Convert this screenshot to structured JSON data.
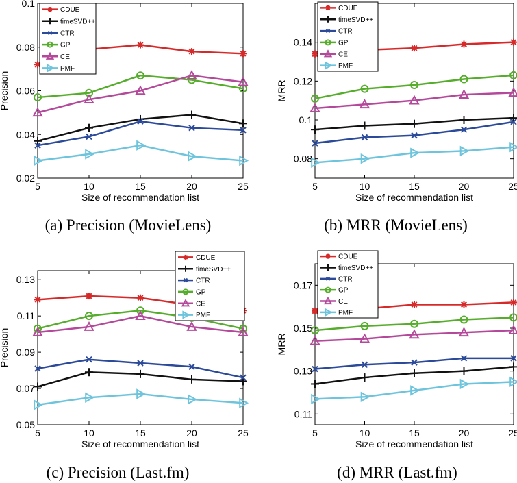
{
  "styles": {
    "CDUE": {
      "color": "#d62a2a",
      "marker": "star"
    },
    "timeSVD++": {
      "color": "#111111",
      "marker": "plus"
    },
    "CTR": {
      "color": "#2b4a9a",
      "marker": "x"
    },
    "GP": {
      "color": "#56ad2c",
      "marker": "circle"
    },
    "CE": {
      "color": "#b4499b",
      "marker": "triangle"
    },
    "PMF": {
      "color": "#6ec4dc",
      "marker": "tri-right"
    }
  },
  "chart_data": [
    {
      "type": "line",
      "caption": "(a) Precision (MovieLens)",
      "xlabel": "Size of recommendation list",
      "ylabel": "Precision",
      "x": [
        5,
        10,
        15,
        20,
        25
      ],
      "xticks": [
        "5",
        "10",
        "15",
        "20",
        "25"
      ],
      "yticks": [
        "0.02",
        "0.04",
        "0.06",
        "0.08",
        "0.1"
      ],
      "ylim": [
        0.02,
        0.1
      ],
      "legend": "top-left",
      "series": [
        {
          "name": "CDUE",
          "values": [
            0.072,
            0.079,
            0.081,
            0.078,
            0.077
          ]
        },
        {
          "name": "timeSVD++",
          "values": [
            0.037,
            0.043,
            0.047,
            0.049,
            0.045
          ]
        },
        {
          "name": "CTR",
          "values": [
            0.035,
            0.039,
            0.046,
            0.043,
            0.042
          ]
        },
        {
          "name": "GP",
          "values": [
            0.057,
            0.059,
            0.067,
            0.065,
            0.061
          ]
        },
        {
          "name": "CE",
          "values": [
            0.05,
            0.056,
            0.06,
            0.067,
            0.064
          ]
        },
        {
          "name": "PMF",
          "values": [
            0.028,
            0.031,
            0.035,
            0.03,
            0.028
          ]
        }
      ]
    },
    {
      "type": "line",
      "caption": "(b) MRR (MovieLens)",
      "xlabel": "Size of recommendation list",
      "ylabel": "MRR",
      "x": [
        5,
        10,
        15,
        20,
        25
      ],
      "xticks": [
        "5",
        "10",
        "15",
        "20",
        "25"
      ],
      "yticks": [
        "0.08",
        "0.1",
        "0.12",
        "0.14"
      ],
      "ylim": [
        0.07,
        0.16
      ],
      "legend": "top-left",
      "series": [
        {
          "name": "CDUE",
          "values": [
            0.134,
            0.136,
            0.137,
            0.139,
            0.14
          ]
        },
        {
          "name": "timeSVD++",
          "values": [
            0.095,
            0.097,
            0.098,
            0.1,
            0.101
          ]
        },
        {
          "name": "CTR",
          "values": [
            0.088,
            0.091,
            0.092,
            0.095,
            0.099
          ]
        },
        {
          "name": "GP",
          "values": [
            0.111,
            0.116,
            0.118,
            0.121,
            0.123
          ]
        },
        {
          "name": "CE",
          "values": [
            0.106,
            0.108,
            0.11,
            0.113,
            0.114
          ]
        },
        {
          "name": "PMF",
          "values": [
            0.078,
            0.08,
            0.083,
            0.084,
            0.086
          ]
        }
      ]
    },
    {
      "type": "line",
      "caption": "(c) Precision (Last.fm)",
      "xlabel": "Size of recommendation list",
      "ylabel": "Precision",
      "x": [
        5,
        10,
        15,
        20,
        25
      ],
      "xticks": [
        "5",
        "10",
        "15",
        "20",
        "25"
      ],
      "yticks": [
        "0.05",
        "0.07",
        "0.09",
        "0.11",
        "0.13"
      ],
      "ylim": [
        0.05,
        0.135
      ],
      "legend": "top-right",
      "series": [
        {
          "name": "CDUE",
          "values": [
            0.119,
            0.121,
            0.12,
            0.116,
            0.113
          ]
        },
        {
          "name": "timeSVD++",
          "values": [
            0.071,
            0.079,
            0.078,
            0.075,
            0.074
          ]
        },
        {
          "name": "CTR",
          "values": [
            0.081,
            0.086,
            0.084,
            0.082,
            0.076
          ]
        },
        {
          "name": "GP",
          "values": [
            0.103,
            0.11,
            0.113,
            0.109,
            0.103
          ]
        },
        {
          "name": "CE",
          "values": [
            0.101,
            0.104,
            0.11,
            0.104,
            0.101
          ]
        },
        {
          "name": "PMF",
          "values": [
            0.061,
            0.065,
            0.067,
            0.064,
            0.062
          ]
        }
      ]
    },
    {
      "type": "line",
      "caption": "(d) MRR (Last.fm)",
      "xlabel": "Size of recommendation list",
      "ylabel": "MRR",
      "x": [
        5,
        10,
        15,
        20,
        25
      ],
      "xticks": [
        "5",
        "10",
        "15",
        "20",
        "25"
      ],
      "yticks": [
        "0.11",
        "0.13",
        "0.15",
        "0.17"
      ],
      "ylim": [
        0.105,
        0.18
      ],
      "legend": "top-left",
      "series": [
        {
          "name": "CDUE",
          "values": [
            0.158,
            0.159,
            0.161,
            0.161,
            0.162
          ]
        },
        {
          "name": "timeSVD++",
          "values": [
            0.124,
            0.127,
            0.129,
            0.13,
            0.132
          ]
        },
        {
          "name": "CTR",
          "values": [
            0.131,
            0.133,
            0.134,
            0.136,
            0.136
          ]
        },
        {
          "name": "GP",
          "values": [
            0.149,
            0.151,
            0.152,
            0.154,
            0.155
          ]
        },
        {
          "name": "CE",
          "values": [
            0.144,
            0.145,
            0.147,
            0.148,
            0.149
          ]
        },
        {
          "name": "PMF",
          "values": [
            0.117,
            0.118,
            0.121,
            0.124,
            0.125
          ]
        }
      ]
    }
  ]
}
